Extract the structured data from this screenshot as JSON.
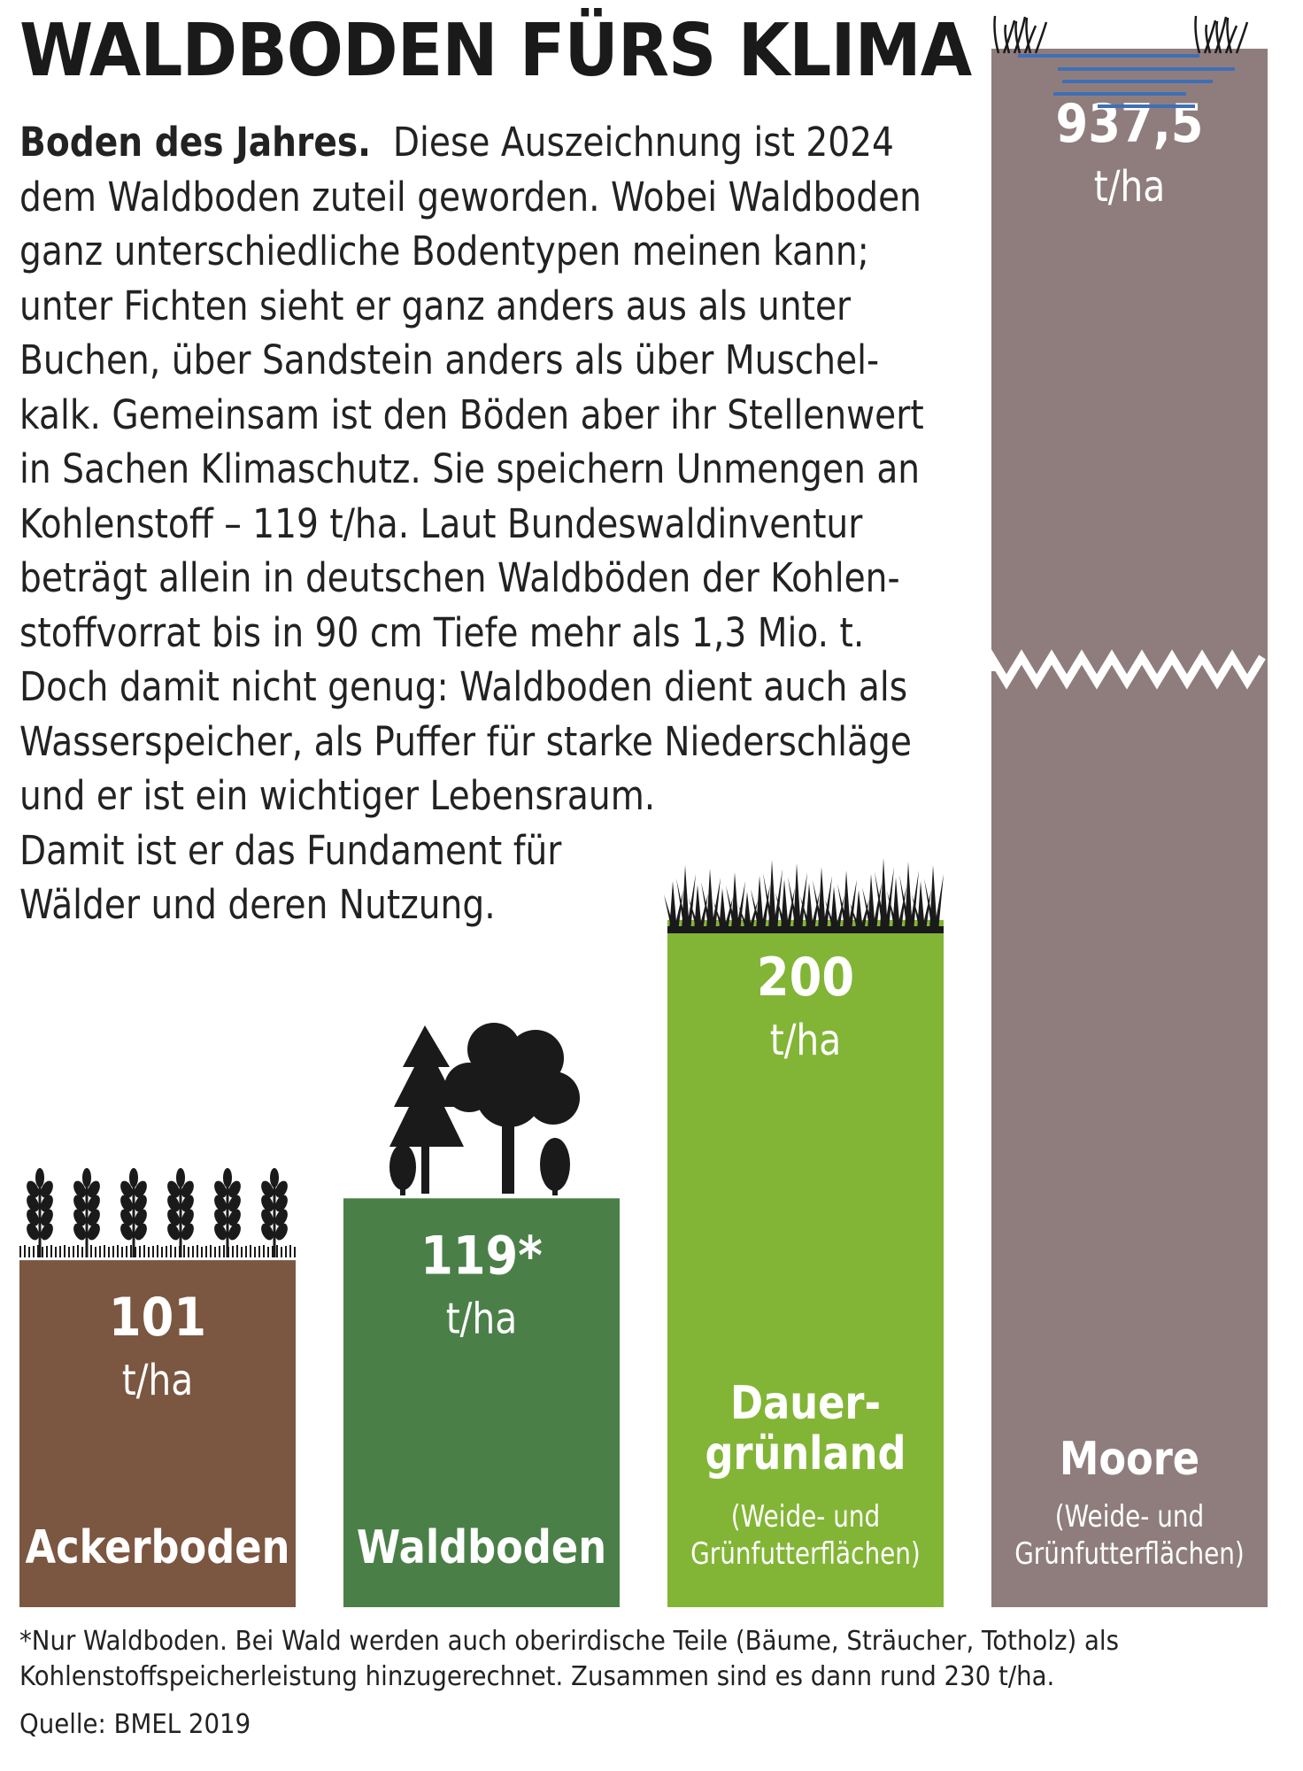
{
  "title": "WALDBODEN FÜRS KLIMA",
  "intro": {
    "lead": "Boden des Jahres.",
    "lines": [
      "Diese Auszeichnung ist 2024",
      "dem Waldboden zuteil geworden. Wobei Waldboden",
      "ganz unterschiedliche Bodentypen meinen kann;",
      "unter Fichten sieht er ganz anders aus als unter",
      "Buchen, über Sandstein anders als über Muschel-",
      "kalk. Gemeinsam ist den Böden aber ihr Stellenwert",
      "in Sachen Klimaschutz. Sie speichern Unmengen an",
      "Kohlenstoff – 119 t/ha. Laut Bundeswaldinventur",
      "beträgt allein in deutschen Waldböden der Kohlen-",
      "stoffvorrat bis in 90 cm Tiefe mehr als 1,3 Mio. t.",
      "Doch damit nicht genug: Waldboden dient auch als",
      "Wasserspeicher, als Puffer für starke Niederschläge",
      "und er ist ein wichtiger Lebensraum.",
      "Damit ist er das Fundament für",
      "Wälder und deren Nutzung."
    ]
  },
  "chart_data": {
    "type": "bar",
    "unit": "t/ha",
    "categories": [
      "Ackerboden",
      "Waldboden",
      "Dauergrünland",
      "Moore"
    ],
    "values": [
      101,
      119,
      200,
      937.5
    ],
    "value_labels": [
      "101",
      "119*",
      "200",
      "937,5"
    ],
    "unit_label": "t/ha",
    "bar_names": [
      [
        "Ackerboden"
      ],
      [
        "Waldboden"
      ],
      [
        "Dauer-",
        "grünland"
      ],
      [
        "Moore"
      ]
    ],
    "bar_subnotes": [
      [],
      [],
      [
        "(Weide- und",
        "Grünfutterflächen)"
      ],
      [
        "(Weide- und",
        "Grünfutterflächen)"
      ]
    ],
    "colors": [
      "#7b5640",
      "#4a8048",
      "#82b535",
      "#8f7d7d"
    ],
    "axis_break": "Moore",
    "grid": false
  },
  "footnote": {
    "line1": "*Nur Waldboden. Bei Wald werden auch oberirdische Teile (Bäume, Sträucher, Totholz) als",
    "line2": "Kohlenstoffspeicherleistung hinzugerechnet. Zusammen sind es dann rund 230 t/ha.",
    "source": "Quelle: BMEL 2019"
  },
  "icons": [
    "wheat-icon",
    "trees-icon",
    "grass-icon",
    "reed-icon",
    "water-icon",
    "axis-break-icon"
  ]
}
